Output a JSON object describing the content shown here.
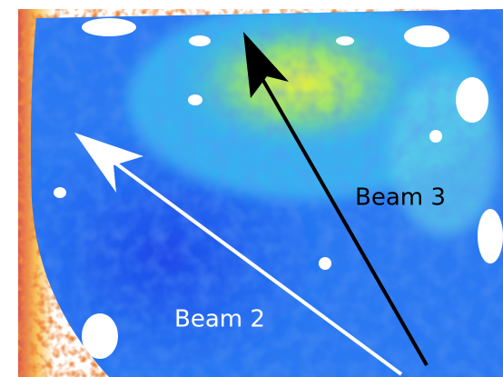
{
  "annotations": [
    {
      "label": "Beam 2"
    },
    {
      "label": "Beam 3"
    }
  ]
}
